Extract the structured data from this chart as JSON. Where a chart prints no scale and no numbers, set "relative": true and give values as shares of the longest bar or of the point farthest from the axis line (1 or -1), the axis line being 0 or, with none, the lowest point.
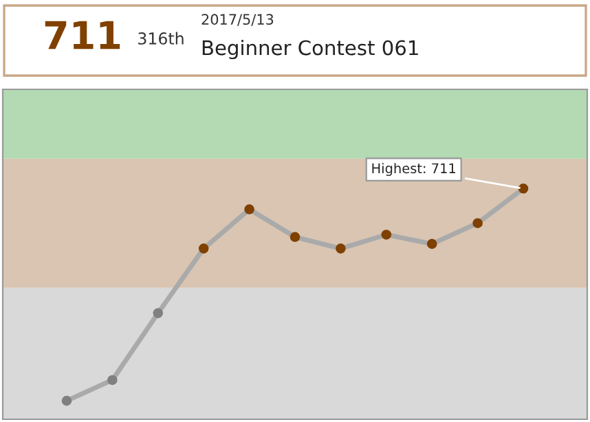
{
  "chart_data": {
    "type": "line",
    "relative": true,
    "categories": [
      null,
      null,
      null,
      null,
      null,
      null,
      null,
      null,
      null,
      null,
      null
    ],
    "series": [
      {
        "color": "#aaaaaa",
        "values": [
          0.08,
          0.17,
          0.46,
          0.74,
          0.91,
          0.79,
          0.74,
          0.8,
          0.76,
          0.85,
          1
        ],
        "colors": [
          "#808080",
          "#808080",
          "#808080",
          "#804000",
          "#804000",
          "#804000",
          "#804000",
          "#804000",
          "#804000",
          "#804000",
          "#804000"
        ]
      }
    ],
    "bands": [
      {
        "axis": "y",
        "from": 0,
        "to": 0.57,
        "color": "#d9d9d9"
      },
      {
        "axis": "y",
        "from": 0.57,
        "to": 1.13,
        "color": "#d9c5b2"
      },
      {
        "axis": "y",
        "from": 1.13,
        "to": 1.43,
        "color": "#b3dab3"
      }
    ],
    "marker": "circle",
    "line_style": "solid",
    "legend": false,
    "annotations": [
      "711",
      "316th",
      "2017/5/13",
      "Beginner Contest 061",
      "Highest: 711"
    ]
  }
}
